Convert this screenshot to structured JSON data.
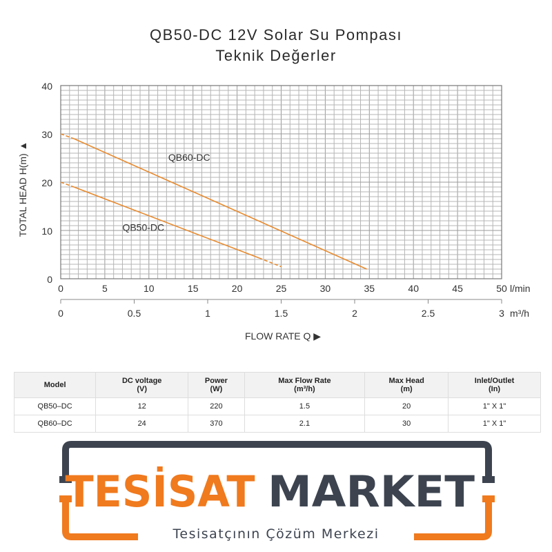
{
  "title": {
    "line1": "QB50-DC 12V Solar Su Pompası",
    "line2": "Teknik Değerler"
  },
  "chart_data": {
    "type": "line",
    "ylabel": "TOTAL HEAD  H(m)  ▲",
    "xlabel": "FLOW RATE Q ▶",
    "ylim": [
      0,
      40
    ],
    "y_ticks": [
      0,
      10,
      20,
      30,
      40
    ],
    "xlim_lmin": [
      0,
      50
    ],
    "x_ticks_lmin": [
      0,
      5,
      10,
      15,
      20,
      25,
      30,
      35,
      40,
      45,
      50
    ],
    "x_unit_lmin": "l/min",
    "x_ticks_m3h": [
      "0",
      "0.5",
      "1",
      "1.5",
      "2",
      "2.5",
      "3"
    ],
    "x_tick_values_m3h": [
      0,
      0.5,
      1,
      1.5,
      2,
      2.5,
      3
    ],
    "x_unit_m3h": "m³/h",
    "grid": true,
    "series": [
      {
        "name": "QB60-DC",
        "color": "#E8892C",
        "solid": [
          [
            1.5,
            29
          ],
          [
            34.7,
            2
          ]
        ],
        "dashed": [
          [
            0,
            30
          ],
          [
            1.5,
            29
          ]
        ]
      },
      {
        "name": "QB50-DC",
        "color": "#E8892C",
        "solid": [
          [
            1.5,
            19
          ],
          [
            22.5,
            4.3
          ]
        ],
        "dashed_start": [
          [
            0,
            20
          ],
          [
            1.5,
            19
          ]
        ],
        "dashed_end": [
          [
            22.5,
            4.3
          ],
          [
            25,
            2.5
          ]
        ]
      }
    ]
  },
  "specs_table": {
    "headers": [
      [
        "Model",
        ""
      ],
      [
        "DC voltage",
        "(V)"
      ],
      [
        "Power",
        "(W)"
      ],
      [
        "Max Flow Rate",
        "(m³/h)"
      ],
      [
        "Max Head",
        "(m)"
      ],
      [
        "Inlet/Outlet",
        "(In)"
      ]
    ],
    "rows": [
      [
        "QB50–DC",
        "12",
        "220",
        "1.5",
        "20",
        "1\" X 1\""
      ],
      [
        "QB60–DC",
        "24",
        "370",
        "2.1",
        "30",
        "1\" X 1\""
      ]
    ]
  },
  "logo": {
    "word1": "TESİSAT",
    "word2": "MARKET",
    "tagline": "Tesisatçının Çözüm Merkezi",
    "colors": {
      "orange": "#F07A1E",
      "dark": "#3D4450"
    }
  }
}
